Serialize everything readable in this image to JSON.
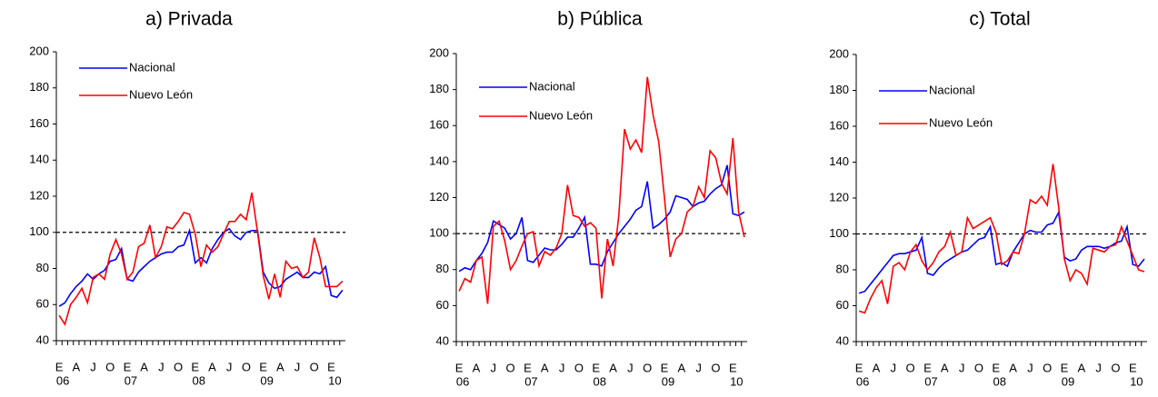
{
  "chart_data": [
    {
      "type": "line",
      "title": "a) Privada",
      "ylim": [
        40,
        200
      ],
      "yticks": [
        40,
        60,
        80,
        100,
        120,
        140,
        160,
        180,
        200
      ],
      "reference": 100,
      "categories": [
        "E",
        null,
        null,
        "A",
        null,
        null,
        "J",
        null,
        null,
        "O",
        null,
        null,
        "E",
        null,
        null,
        "A",
        null,
        null,
        "J",
        null,
        null,
        "O",
        null,
        null,
        "E",
        null,
        null,
        "A",
        null,
        null,
        "J",
        null,
        null,
        "O",
        null,
        null,
        "E",
        null,
        null,
        "A",
        null,
        null,
        "J",
        null,
        null,
        "O",
        null,
        null,
        "E",
        null,
        null
      ],
      "year_categories": [
        "06",
        null,
        null,
        null,
        null,
        null,
        null,
        null,
        null,
        null,
        null,
        null,
        "07",
        null,
        null,
        null,
        null,
        null,
        null,
        null,
        null,
        null,
        null,
        null,
        "08",
        null,
        null,
        null,
        null,
        null,
        null,
        null,
        null,
        null,
        null,
        null,
        "09",
        null,
        null,
        null,
        null,
        null,
        null,
        null,
        null,
        null,
        null,
        null,
        "10",
        null,
        null
      ],
      "series": [
        {
          "name": "Nacional",
          "color": "#0000ff",
          "values": [
            59,
            61,
            66,
            70,
            73,
            77,
            74,
            77,
            79,
            84,
            85,
            91,
            74,
            73,
            78,
            81,
            84,
            86,
            88,
            89,
            89,
            92,
            93,
            101,
            83,
            86,
            83,
            91,
            96,
            100,
            102,
            98,
            96,
            100,
            101,
            101,
            78,
            72,
            69,
            70,
            74,
            76,
            78,
            75,
            75,
            78,
            77,
            81,
            65,
            64,
            68
          ]
        },
        {
          "name": "Nuevo León",
          "color": "#ff0000",
          "values": [
            54,
            49,
            60,
            64,
            69,
            61,
            75,
            77,
            74,
            88,
            96,
            88,
            74,
            78,
            92,
            94,
            104,
            86,
            92,
            103,
            102,
            106,
            111,
            110,
            99,
            81,
            93,
            89,
            92,
            99,
            106,
            106,
            110,
            107,
            122,
            100,
            76,
            63,
            77,
            64,
            84,
            80,
            81,
            75,
            78,
            97,
            86,
            70,
            70,
            70,
            73
          ]
        }
      ]
    },
    {
      "type": "line",
      "title": "b) Pública",
      "ylim": [
        40,
        200
      ],
      "yticks": [
        40,
        60,
        80,
        100,
        120,
        140,
        160,
        180,
        200
      ],
      "reference": 100,
      "categories": [
        "E",
        null,
        null,
        "A",
        null,
        null,
        "J",
        null,
        null,
        "O",
        null,
        null,
        "E",
        null,
        null,
        "A",
        null,
        null,
        "J",
        null,
        null,
        "O",
        null,
        null,
        "E",
        null,
        null,
        "A",
        null,
        null,
        "J",
        null,
        null,
        "O",
        null,
        null,
        "E",
        null,
        null,
        "A",
        null,
        null,
        "J",
        null,
        null,
        "O",
        null,
        null,
        "E",
        null,
        null
      ],
      "year_categories": [
        "06",
        null,
        null,
        null,
        null,
        null,
        null,
        null,
        null,
        null,
        null,
        null,
        "07",
        null,
        null,
        null,
        null,
        null,
        null,
        null,
        null,
        null,
        null,
        null,
        "08",
        null,
        null,
        null,
        null,
        null,
        null,
        null,
        null,
        null,
        null,
        null,
        "09",
        null,
        null,
        null,
        null,
        null,
        null,
        null,
        null,
        null,
        null,
        null,
        "10",
        null,
        null
      ],
      "series": [
        {
          "name": "Nacional",
          "color": "#0000ff",
          "values": [
            79,
            81,
            80,
            85,
            89,
            95,
            107,
            105,
            103,
            97,
            100,
            109,
            85,
            84,
            88,
            92,
            91,
            91,
            94,
            98,
            98,
            103,
            109,
            83,
            83,
            82,
            90,
            95,
            100,
            104,
            108,
            113,
            115,
            129,
            103,
            105,
            108,
            112,
            121,
            120,
            119,
            115,
            117,
            118,
            122,
            125,
            127,
            138,
            111,
            110,
            112
          ]
        },
        {
          "name": "Nuevo León",
          "color": "#ff0000",
          "values": [
            68,
            75,
            73,
            85,
            87,
            61,
            104,
            107,
            96,
            80,
            85,
            93,
            100,
            101,
            82,
            90,
            88,
            92,
            100,
            127,
            110,
            109,
            104,
            106,
            103,
            64,
            97,
            82,
            110,
            158,
            147,
            152,
            145,
            187,
            166,
            151,
            120,
            87,
            97,
            100,
            112,
            115,
            126,
            120,
            146,
            142,
            128,
            122,
            153,
            112,
            98
          ]
        }
      ]
    },
    {
      "type": "line",
      "title": "c) Total",
      "ylim": [
        40,
        200
      ],
      "yticks": [
        40,
        60,
        80,
        100,
        120,
        140,
        160,
        180,
        200
      ],
      "reference": 100,
      "categories": [
        "E",
        null,
        null,
        "A",
        null,
        null,
        "J",
        null,
        null,
        "O",
        null,
        null,
        "E",
        null,
        null,
        "A",
        null,
        null,
        "J",
        null,
        null,
        "O",
        null,
        null,
        "E",
        null,
        null,
        "A",
        null,
        null,
        "J",
        null,
        null,
        "O",
        null,
        null,
        "E",
        null,
        null,
        "A",
        null,
        null,
        "J",
        null,
        null,
        "O",
        null,
        null,
        "E",
        null,
        null
      ],
      "year_categories": [
        "06",
        null,
        null,
        null,
        null,
        null,
        null,
        null,
        null,
        null,
        null,
        null,
        "07",
        null,
        null,
        null,
        null,
        null,
        null,
        null,
        null,
        null,
        null,
        null,
        "08",
        null,
        null,
        null,
        null,
        null,
        null,
        null,
        null,
        null,
        null,
        null,
        "09",
        null,
        null,
        null,
        null,
        null,
        null,
        null,
        null,
        null,
        null,
        null,
        "10",
        null,
        null
      ],
      "series": [
        {
          "name": "Nacional",
          "color": "#0000ff",
          "values": [
            67,
            68,
            72,
            76,
            80,
            84,
            88,
            89,
            89,
            90,
            91,
            98,
            78,
            77,
            81,
            84,
            86,
            88,
            90,
            91,
            94,
            97,
            98,
            104,
            83,
            84,
            82,
            90,
            95,
            100,
            102,
            101,
            101,
            105,
            106,
            112,
            87,
            85,
            86,
            91,
            93,
            93,
            93,
            92,
            93,
            95,
            96,
            104,
            83,
            82,
            86
          ]
        },
        {
          "name": "Nuevo León",
          "color": "#ff0000",
          "values": [
            57,
            56,
            64,
            70,
            74,
            61,
            82,
            84,
            80,
            90,
            94,
            85,
            80,
            84,
            90,
            93,
            101,
            88,
            90,
            109,
            103,
            105,
            107,
            109,
            101,
            83,
            85,
            90,
            89,
            100,
            119,
            117,
            121,
            116,
            139,
            115,
            86,
            74,
            80,
            78,
            72,
            92,
            91,
            90,
            93,
            94,
            104,
            96,
            88,
            80,
            79
          ]
        }
      ]
    }
  ]
}
